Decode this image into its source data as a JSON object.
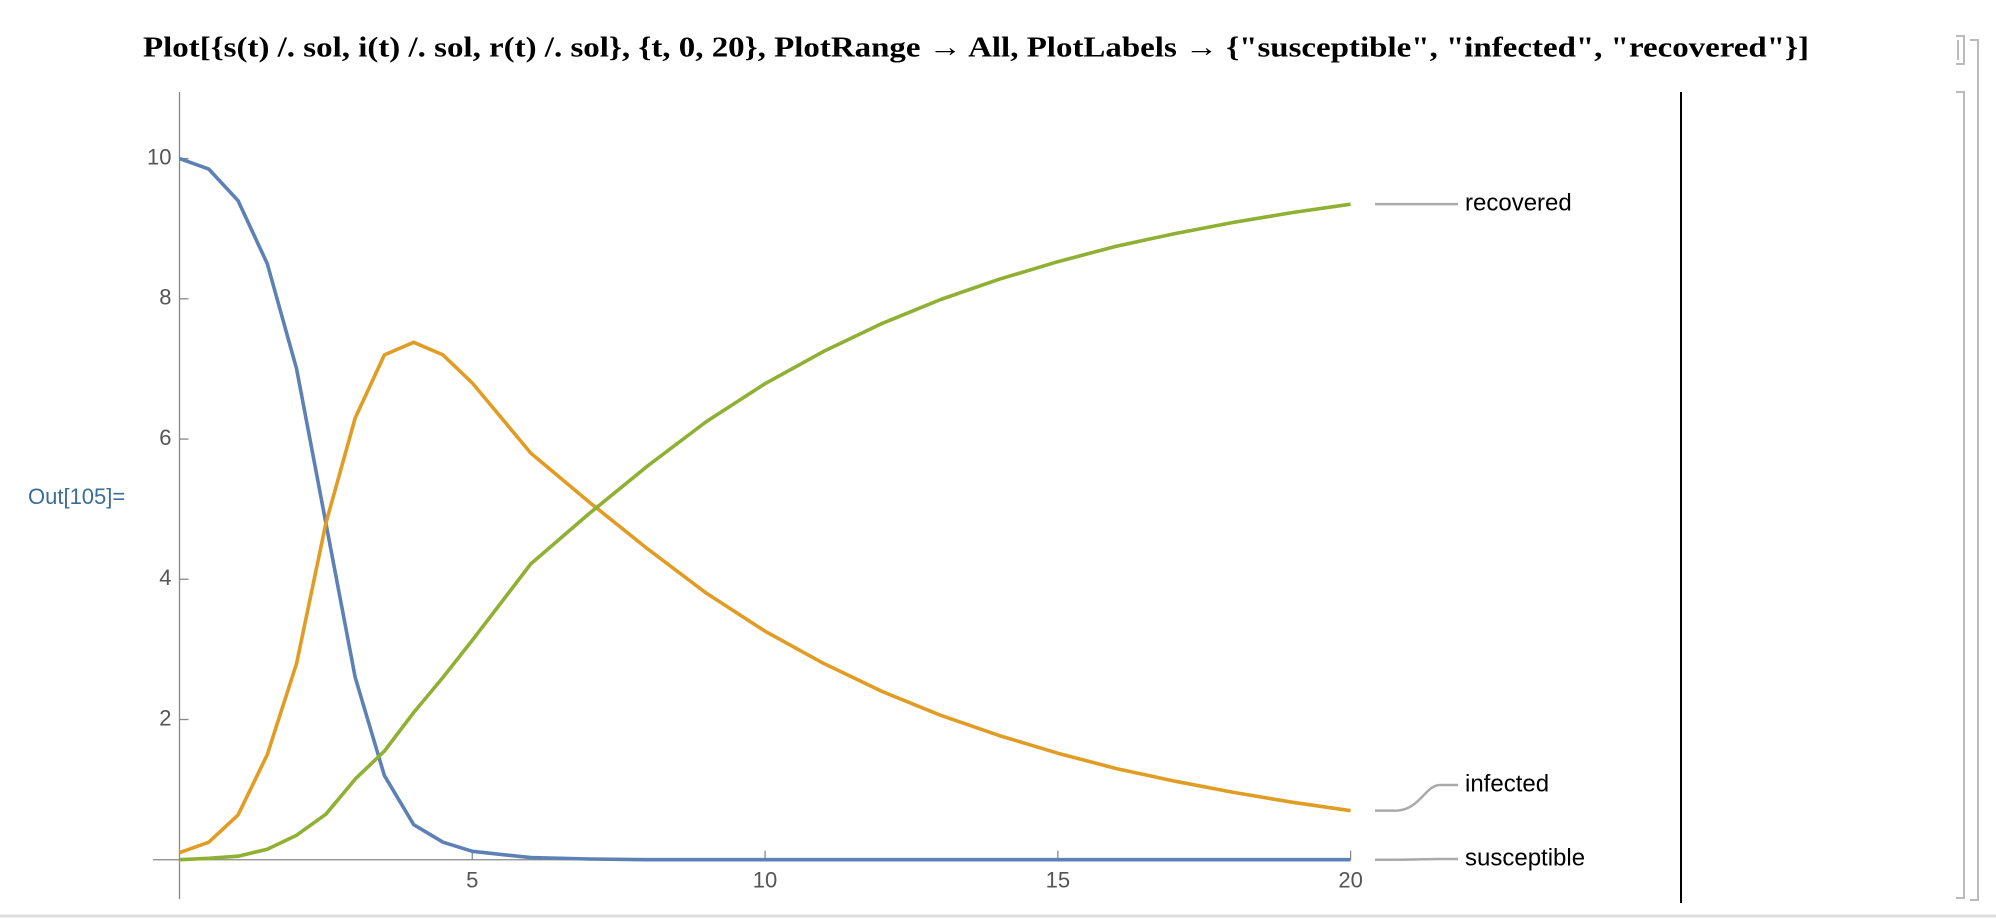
{
  "input": "Plot[{s(t) /. sol, i(t) /. sol, r(t) /. sol}, {t, 0, 20}, PlotRange → All, PlotLabels → {\"susceptible\", \"infected\", \"recovered\"}]",
  "output_label": "Out[105]=",
  "chart_data": {
    "type": "line",
    "x": [
      0,
      0.5,
      1,
      1.5,
      2,
      2.5,
      3,
      3.5,
      4,
      4.5,
      5,
      6,
      7,
      8,
      9,
      10,
      11,
      12,
      13,
      14,
      15,
      16,
      17,
      18,
      19,
      20
    ],
    "series": [
      {
        "name": "susceptible",
        "color": "#5e81b5",
        "values": [
          10,
          9.85,
          9.4,
          8.5,
          7.0,
          4.8,
          2.6,
          1.2,
          0.5,
          0.25,
          0.12,
          0.03,
          0.01,
          0,
          0,
          0,
          0,
          0,
          0,
          0,
          0,
          0,
          0,
          0,
          0,
          0
        ]
      },
      {
        "name": "infected",
        "color": "#e19c24",
        "values": [
          0.1,
          0.25,
          0.64,
          1.5,
          2.8,
          4.8,
          6.3,
          7.2,
          7.38,
          7.2,
          6.8,
          5.8,
          5.1,
          4.43,
          3.8,
          3.26,
          2.8,
          2.4,
          2.06,
          1.77,
          1.52,
          1.3,
          1.12,
          0.96,
          0.82,
          0.7
        ]
      },
      {
        "name": "recovered",
        "color": "#8fb032",
        "values": [
          0,
          0.02,
          0.05,
          0.15,
          0.35,
          0.65,
          1.15,
          1.55,
          2.1,
          2.6,
          3.13,
          4.22,
          4.94,
          5.62,
          6.25,
          6.79,
          7.25,
          7.65,
          7.99,
          8.28,
          8.53,
          8.75,
          8.93,
          9.09,
          9.23,
          9.35
        ]
      }
    ],
    "xlim": [
      0,
      20
    ],
    "ylim": [
      -0.56,
      10.95
    ],
    "xticks": [
      5,
      10,
      15,
      20
    ],
    "yticks": [
      2,
      4,
      6,
      8,
      10
    ]
  }
}
